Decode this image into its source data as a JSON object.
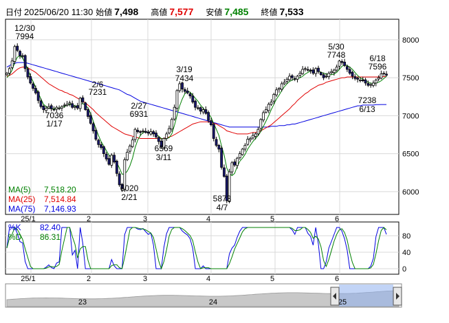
{
  "header": {
    "date_prefix": "日付",
    "datetime": "2025/06/20 11:30",
    "open_label": "始値",
    "open": "7,498",
    "high_label": "高値",
    "high": "7,577",
    "low_label": "安値",
    "low": "7,485",
    "close_label": "終値",
    "close": "7,533",
    "colors": {
      "high": "#e00000",
      "low": "#008000",
      "neutral": "#000000"
    }
  },
  "chart_data": [
    {
      "type": "candlestick",
      "title": "",
      "x_tick_labels": [
        "25/1",
        "2",
        "3",
        "4",
        "5",
        "6"
      ],
      "y_ticks": [
        6000,
        6500,
        7000,
        7500,
        8000
      ],
      "ylim": [
        5700,
        8270
      ],
      "grid": true,
      "annotations": [
        {
          "date": "12/30",
          "value": "7994"
        },
        {
          "date": "1/17",
          "value": "7036"
        },
        {
          "date": "2/6",
          "value": "7231"
        },
        {
          "date": "2/21",
          "value": "6020"
        },
        {
          "date": "2/27",
          "value": "6931"
        },
        {
          "date": "3/11",
          "value": "6569"
        },
        {
          "date": "3/19",
          "value": "7434"
        },
        {
          "date": "4/7",
          "value": "5873"
        },
        {
          "date": "5/30",
          "value": "7748"
        },
        {
          "date": "6/13",
          "value": "7238"
        },
        {
          "date": "6/18",
          "value": "7596"
        }
      ],
      "legend": [
        {
          "name": "MA(5)",
          "value": "7,518.20",
          "color": "#008000"
        },
        {
          "name": "MA(25)",
          "value": "7,514.84",
          "color": "#e00000"
        },
        {
          "name": "MA(75)",
          "value": "7,146.93",
          "color": "#0000e0"
        }
      ],
      "close": [
        7560,
        7620,
        7720,
        7910,
        7860,
        7790,
        7780,
        7620,
        7510,
        7430,
        7360,
        7300,
        7200,
        7120,
        7080,
        7100,
        7120,
        7090,
        7080,
        7110,
        7100,
        7120,
        7140,
        7150,
        7170,
        7110,
        7120,
        7100,
        7230,
        7180,
        7080,
        6990,
        6900,
        6800,
        6690,
        6620,
        6580,
        6500,
        6430,
        6360,
        6480,
        6390,
        6240,
        6090,
        6040,
        6420,
        6520,
        6600,
        6680,
        6820,
        6790,
        6780,
        6800,
        6780,
        6770,
        6790,
        6760,
        6720,
        6660,
        6590,
        6700,
        6760,
        6830,
        6950,
        7110,
        7330,
        7420,
        7350,
        7320,
        7300,
        7260,
        7180,
        7110,
        7100,
        7060,
        7080,
        7030,
        6940,
        6880,
        6700,
        6610,
        6560,
        6320,
        6200,
        5880,
        6260,
        6380,
        6350,
        6440,
        6500,
        6560,
        6610,
        6690,
        6700,
        6740,
        6760,
        6820,
        6950,
        7040,
        7080,
        7150,
        7180,
        7280,
        7340,
        7360,
        7420,
        7440,
        7480,
        7520,
        7500,
        7480,
        7520,
        7560,
        7610,
        7620,
        7600,
        7590,
        7560,
        7620,
        7580,
        7540,
        7500,
        7520,
        7560,
        7580,
        7600,
        7640,
        7720,
        7700,
        7660,
        7610,
        7560,
        7520,
        7490,
        7480,
        7470,
        7460,
        7430,
        7400,
        7410,
        7430,
        7470,
        7500,
        7550,
        7560,
        7533
      ],
      "ma5": [
        7500,
        7540,
        7600,
        7700,
        7770,
        7790,
        7760,
        7690,
        7610,
        7520,
        7450,
        7370,
        7300,
        7220,
        7150,
        7120,
        7100,
        7090,
        7090,
        7100,
        7100,
        7110,
        7120,
        7140,
        7150,
        7140,
        7130,
        7120,
        7150,
        7160,
        7140,
        7100,
        7030,
        6930,
        6830,
        6740,
        6660,
        6600,
        6540,
        6480,
        6450,
        6430,
        6380,
        6310,
        6230,
        6230,
        6270,
        6340,
        6440,
        6580,
        6680,
        6740,
        6780,
        6790,
        6780,
        6780,
        6770,
        6760,
        6730,
        6700,
        6690,
        6700,
        6710,
        6760,
        6870,
        7000,
        7130,
        7220,
        7290,
        7320,
        7310,
        7270,
        7230,
        7190,
        7140,
        7100,
        7060,
        7030,
        6980,
        6900,
        6820,
        6740,
        6600,
        6480,
        6310,
        6240,
        6210,
        6240,
        6330,
        6400,
        6440,
        6490,
        6560,
        6610,
        6660,
        6700,
        6740,
        6790,
        6860,
        6930,
        7000,
        7080,
        7150,
        7220,
        7270,
        7330,
        7380,
        7420,
        7450,
        7470,
        7480,
        7490,
        7500,
        7520,
        7550,
        7570,
        7590,
        7590,
        7590,
        7590,
        7570,
        7560,
        7550,
        7540,
        7540,
        7550,
        7570,
        7610,
        7650,
        7670,
        7660,
        7640,
        7610,
        7570,
        7530,
        7500,
        7480,
        7460,
        7440,
        7430,
        7420,
        7430,
        7440,
        7460,
        7490,
        7518
      ],
      "ma25": [
        7520,
        7530,
        7550,
        7580,
        7610,
        7630,
        7640,
        7640,
        7630,
        7610,
        7590,
        7570,
        7540,
        7510,
        7480,
        7450,
        7420,
        7400,
        7380,
        7360,
        7340,
        7330,
        7310,
        7300,
        7280,
        7270,
        7250,
        7230,
        7210,
        7190,
        7170,
        7140,
        7110,
        7080,
        7040,
        7010,
        6980,
        6950,
        6920,
        6890,
        6860,
        6840,
        6820,
        6800,
        6780,
        6760,
        6750,
        6740,
        6730,
        6720,
        6710,
        6700,
        6700,
        6700,
        6700,
        6700,
        6700,
        6700,
        6700,
        6700,
        6700,
        6710,
        6720,
        6730,
        6750,
        6770,
        6790,
        6810,
        6830,
        6850,
        6870,
        6890,
        6900,
        6910,
        6920,
        6920,
        6920,
        6920,
        6910,
        6900,
        6890,
        6870,
        6850,
        6830,
        6800,
        6790,
        6780,
        6770,
        6760,
        6760,
        6760,
        6760,
        6760,
        6770,
        6780,
        6780,
        6790,
        6800,
        6820,
        6840,
        6860,
        6880,
        6910,
        6940,
        6970,
        7000,
        7030,
        7060,
        7090,
        7130,
        7160,
        7200,
        7230,
        7260,
        7290,
        7310,
        7340,
        7360,
        7380,
        7400,
        7410,
        7420,
        7440,
        7450,
        7460,
        7470,
        7480,
        7490,
        7500,
        7500,
        7510,
        7510,
        7510,
        7510,
        7510,
        7510,
        7510,
        7510,
        7510,
        7510,
        7510,
        7510,
        7510,
        7512,
        7514,
        7515
      ],
      "ma75": [
        7640,
        7660,
        7680,
        7690,
        7700,
        7700,
        7700,
        7700,
        7690,
        7680,
        7670,
        7660,
        7650,
        7640,
        7630,
        7620,
        7610,
        7600,
        7590,
        7580,
        7570,
        7560,
        7550,
        7540,
        7530,
        7520,
        7510,
        7500,
        7490,
        7480,
        7470,
        7460,
        7450,
        7440,
        7430,
        7420,
        7410,
        7400,
        7390,
        7380,
        7370,
        7360,
        7350,
        7340,
        7320,
        7300,
        7280,
        7270,
        7250,
        7230,
        7210,
        7190,
        7180,
        7170,
        7160,
        7150,
        7140,
        7130,
        7120,
        7110,
        7100,
        7090,
        7080,
        7070,
        7060,
        7050,
        7040,
        7030,
        7020,
        7010,
        7000,
        6990,
        6980,
        6970,
        6960,
        6950,
        6940,
        6930,
        6920,
        6910,
        6900,
        6890,
        6880,
        6870,
        6860,
        6850,
        6850,
        6850,
        6850,
        6850,
        6850,
        6850,
        6850,
        6850,
        6850,
        6850,
        6850,
        6850,
        6850,
        6850,
        6850,
        6860,
        6860,
        6860,
        6870,
        6870,
        6870,
        6880,
        6880,
        6890,
        6890,
        6900,
        6910,
        6920,
        6930,
        6940,
        6950,
        6960,
        6970,
        6980,
        6990,
        7000,
        7010,
        7020,
        7030,
        7040,
        7050,
        7060,
        7070,
        7080,
        7090,
        7100,
        7110,
        7120,
        7130,
        7130,
        7140,
        7140,
        7140,
        7140,
        7140,
        7145,
        7146,
        7147,
        7147,
        7147
      ]
    },
    {
      "type": "line",
      "title": "",
      "ylim": [
        0,
        100
      ],
      "y_ticks": [
        0,
        40,
        80
      ],
      "legend": [
        {
          "name": "%K",
          "value": "82.40",
          "color": "#0000e0"
        },
        {
          "name": "%D",
          "value": "86.31",
          "color": "#008000"
        }
      ]
    },
    {
      "type": "area",
      "title": "",
      "x_tick_labels": [
        "23",
        "24",
        "25"
      ]
    }
  ]
}
